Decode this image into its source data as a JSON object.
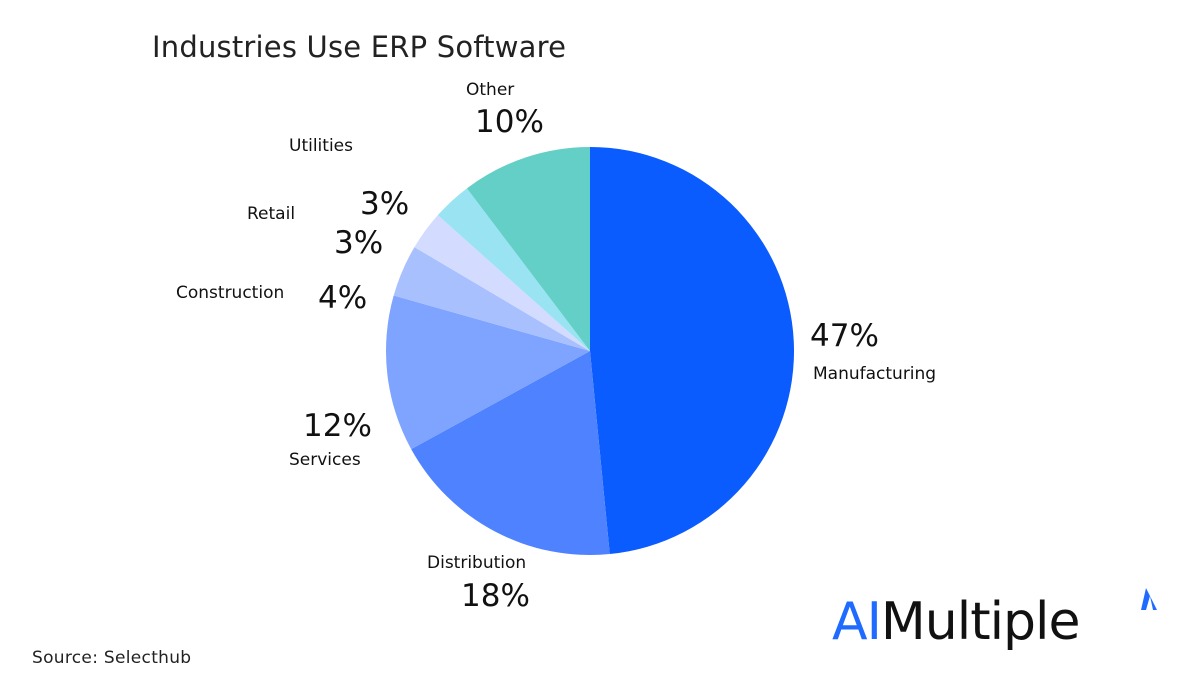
{
  "title": "Industries Use ERP Software",
  "source": "Source: Selecthub",
  "logo": {
    "part1": "AI",
    "part2": "Multiple"
  },
  "colors": {
    "Manufacturing": "#0a5cff",
    "Distribution": "#4f82ff",
    "Services": "#7ea4ff",
    "Construction": "#a9c0ff",
    "Retail": "#d3dcff",
    "Utilities": "#c4ecfb",
    "Utilities2": "#99e3f3",
    "Other": "#63cfc6"
  },
  "chart_data": {
    "type": "pie",
    "title": "Industries Use ERP Software",
    "slices": [
      {
        "label": "Manufacturing",
        "value": 47,
        "display": "47%"
      },
      {
        "label": "Distribution",
        "value": 18,
        "display": "18%"
      },
      {
        "label": "Services",
        "value": 12,
        "display": "12%"
      },
      {
        "label": "Construction",
        "value": 4,
        "display": "4%"
      },
      {
        "label": "Retail",
        "value": 3,
        "display": "3%"
      },
      {
        "label": "Utilities",
        "value": 3,
        "display": "3%"
      },
      {
        "label": "Other",
        "value": 10,
        "display": "10%"
      }
    ],
    "extra_slice_note": ""
  }
}
